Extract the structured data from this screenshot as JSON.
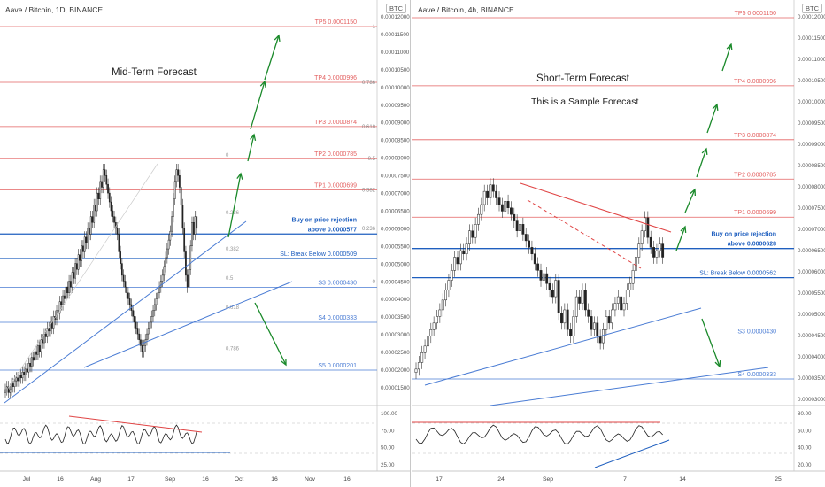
{
  "left": {
    "header": "Aave / Bitcoin, 1D, BINANCE",
    "badge": "BTC",
    "title": "Mid-Term Forecast",
    "levels": [
      {
        "label": "TP5 0.0001150",
        "price": 0.000115,
        "kind": "tp"
      },
      {
        "label": "TP4 0.0000996",
        "price": 9.96e-05,
        "kind": "tp"
      },
      {
        "label": "TP3 0.0000874",
        "price": 8.74e-05,
        "kind": "tp"
      },
      {
        "label": "TP2 0.0000785",
        "price": 7.85e-05,
        "kind": "tp"
      },
      {
        "label": "TP1 0.0000699",
        "price": 6.99e-05,
        "kind": "tp"
      },
      {
        "label": "above 0.0000577",
        "price": 5.77e-05,
        "kind": "buy"
      },
      {
        "label": "SL: Break Below 0.0000509",
        "price": 5.09e-05,
        "kind": "sl"
      },
      {
        "label": "S3 0.0000430",
        "price": 4.3e-05,
        "kind": "s"
      },
      {
        "label": "S4 0.0000333",
        "price": 3.33e-05,
        "kind": "s"
      },
      {
        "label": "S5 0.0000201",
        "price": 2.01e-05,
        "kind": "s"
      }
    ],
    "buy_note": "Buy on price rejection",
    "fib_labels": [
      {
        "text": "1",
        "price": 0.000115
      },
      {
        "text": "0.786",
        "price": 9.96e-05
      },
      {
        "text": "0.618",
        "price": 8.74e-05
      },
      {
        "text": "0.5",
        "price": 7.85e-05
      },
      {
        "text": "0.382",
        "price": 6.99e-05
      },
      {
        "text": "0.236",
        "price": 5.92e-05
      },
      {
        "text": "0",
        "price": 4.45e-05
      }
    ],
    "fib_inner_labels": [
      {
        "text": "0",
        "price": 7.85e-05
      },
      {
        "text": "0.236",
        "price": 6.26e-05
      },
      {
        "text": "0.382",
        "price": 5.26e-05
      },
      {
        "text": "0.5",
        "price": 4.45e-05
      },
      {
        "text": "0.618",
        "price": 3.65e-05
      },
      {
        "text": "0.786",
        "price": 2.51e-05
      }
    ],
    "y_axis": [
      "0.00012000",
      "0.00011500",
      "0.00011000",
      "0.00010500",
      "0.00010000",
      "0.00009500",
      "0.00009000",
      "0.00008500",
      "0.00008000",
      "0.00007500",
      "0.00007000",
      "0.00006500",
      "0.00006000",
      "0.00005500",
      "0.00005000",
      "0.00004500",
      "0.00004000",
      "0.00003500",
      "0.00003000",
      "0.00002500",
      "0.00002000",
      "0.00001500"
    ],
    "x_axis": [
      "Jul",
      "16",
      "Aug",
      "17",
      "Sep",
      "16",
      "Oct",
      "16",
      "Nov",
      "16"
    ],
    "osc_axis": [
      "100.00",
      "75.00",
      "50.00",
      "25.00"
    ],
    "candles": [
      13,
      14,
      12,
      13,
      15,
      14,
      16,
      17,
      16,
      18,
      17,
      19,
      18,
      20,
      19,
      22,
      21,
      24,
      23,
      26,
      25,
      28,
      26,
      30,
      29,
      32,
      31,
      34,
      33,
      36,
      34,
      38,
      37,
      40,
      39,
      43,
      42,
      45,
      44,
      48,
      46,
      50,
      48,
      53,
      51,
      56,
      54,
      59,
      57,
      62,
      60,
      65,
      63,
      68,
      66,
      72,
      70,
      76,
      74,
      80,
      78,
      84,
      82,
      88,
      86,
      83,
      80,
      77,
      74,
      72,
      70,
      68,
      66,
      60,
      56,
      52,
      50,
      48,
      46,
      44,
      42,
      40,
      38,
      36,
      34,
      32,
      30,
      28,
      26,
      28,
      30,
      32,
      34,
      36,
      38,
      40,
      42,
      44,
      46,
      48,
      50,
      52,
      55,
      58,
      61,
      64,
      67,
      72,
      78,
      84,
      88,
      86,
      82,
      76,
      68,
      60,
      52,
      48,
      54,
      62,
      70,
      66,
      72,
      68
    ]
  },
  "right": {
    "header": "Aave / Bitcoin, 4h, BINANCE",
    "badge": "BTC",
    "title": "Short-Term Forecast",
    "subtitle": "This is a Sample Forecast",
    "levels": [
      {
        "label": "TP5 0.0001150",
        "price": 0.000115,
        "kind": "tp"
      },
      {
        "label": "TP4 0.0000996",
        "price": 9.96e-05,
        "kind": "tp"
      },
      {
        "label": "TP3 0.0000874",
        "price": 8.74e-05,
        "kind": "tp"
      },
      {
        "label": "TP2 0.0000785",
        "price": 7.85e-05,
        "kind": "tp"
      },
      {
        "label": "TP1 0.0000699",
        "price": 6.99e-05,
        "kind": "tp"
      },
      {
        "label": "above 0.0000628",
        "price": 6.28e-05,
        "kind": "buy"
      },
      {
        "label": "SL: Break Below 0.0000562",
        "price": 5.62e-05,
        "kind": "sl"
      },
      {
        "label": "S3 0.0000430",
        "price": 4.3e-05,
        "kind": "s"
      },
      {
        "label": "S4 0.0000333",
        "price": 3.33e-05,
        "kind": "s"
      }
    ],
    "buy_note": "Buy on price rejection",
    "y_axis": [
      "0.00012000",
      "0.00011500",
      "0.00011000",
      "0.00010500",
      "0.00010000",
      "0.00009500",
      "0.00009000",
      "0.00008500",
      "0.00008000",
      "0.00007500",
      "0.00007000",
      "0.00006500",
      "0.00006000",
      "0.00005500",
      "0.00005000",
      "0.00004500",
      "0.00004000",
      "0.00003500",
      "0.00003000"
    ],
    "x_axis": [
      "17",
      "24",
      "Sep",
      "7",
      "14",
      "25"
    ],
    "osc_axis": [
      "80.00",
      "60.00",
      "40.00",
      "20.00"
    ],
    "candles": [
      28,
      30,
      33,
      35,
      38,
      40,
      42,
      44,
      46,
      49,
      52,
      55,
      58,
      62,
      60,
      64,
      63,
      66,
      70,
      68,
      72,
      75,
      78,
      82,
      80,
      84,
      82,
      80,
      78,
      76,
      79,
      77,
      75,
      73,
      70,
      72,
      69,
      67,
      65,
      63,
      60,
      58,
      55,
      57,
      54,
      52,
      50,
      55,
      45,
      42,
      46,
      40,
      38,
      44,
      50,
      48,
      52,
      46,
      44,
      40,
      42,
      38,
      36,
      40,
      44,
      42,
      46,
      48,
      50,
      46,
      48,
      52,
      54,
      58,
      62,
      66,
      70,
      74,
      68,
      65,
      62,
      64,
      66,
      62
    ]
  }
}
